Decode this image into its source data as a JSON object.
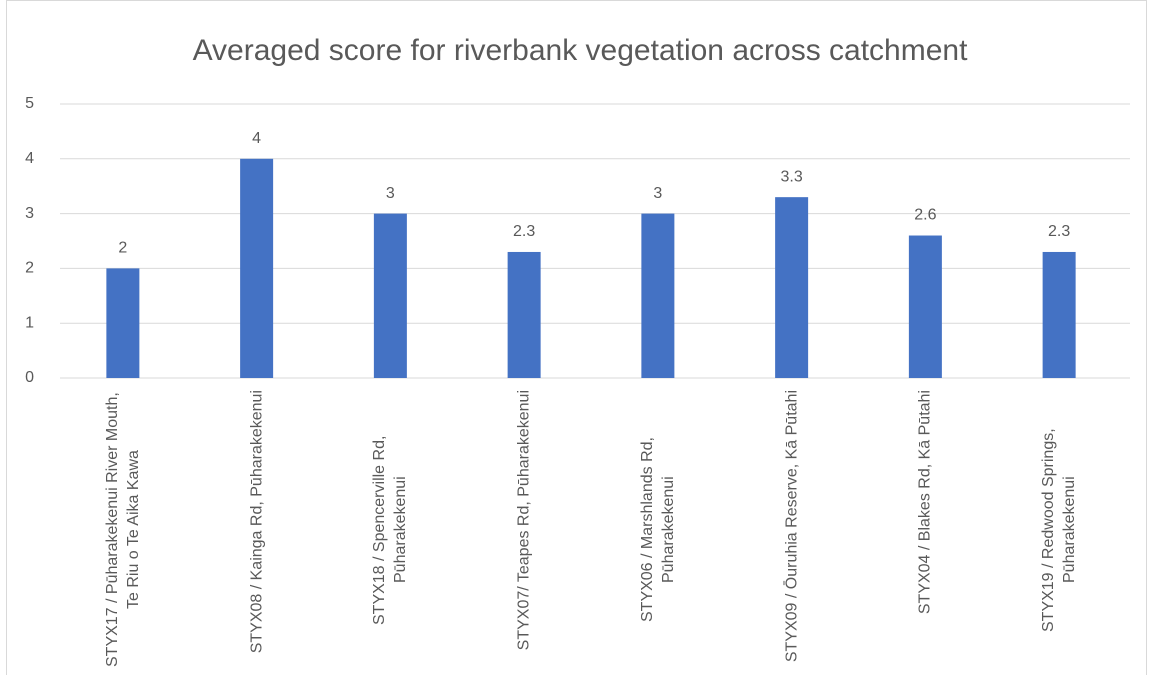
{
  "chart_data": {
    "type": "bar",
    "title": "Averaged score for riverbank vegetation across catchment",
    "categories": [
      "STYX17 / Pūharakekenui River Mouth, Te Riu o Te Aika Kawa",
      "STYX08 / Kainga Rd, Pūharakekenui",
      "STYX18 / Spencerville Rd, Pūharakekenui",
      "STYX07/ Teapes Rd, Pūharakekenui",
      "STYX06 / Marshlands Rd, Pūharakekenui",
      "STYX09 / Ōuruhia Reserve, Kā Pūtahi",
      "STYX04 / Blakes Rd, Kā Pūtahi",
      "STYX19 / Redwood Springs, Pūharakekenui"
    ],
    "values": [
      2,
      4,
      3,
      2.3,
      3,
      3.3,
      2.6,
      2.3
    ],
    "color": "#4472c4",
    "ylim": [
      0,
      5
    ],
    "yticks": [
      0,
      1,
      2,
      3,
      4,
      5
    ],
    "grid": true
  }
}
